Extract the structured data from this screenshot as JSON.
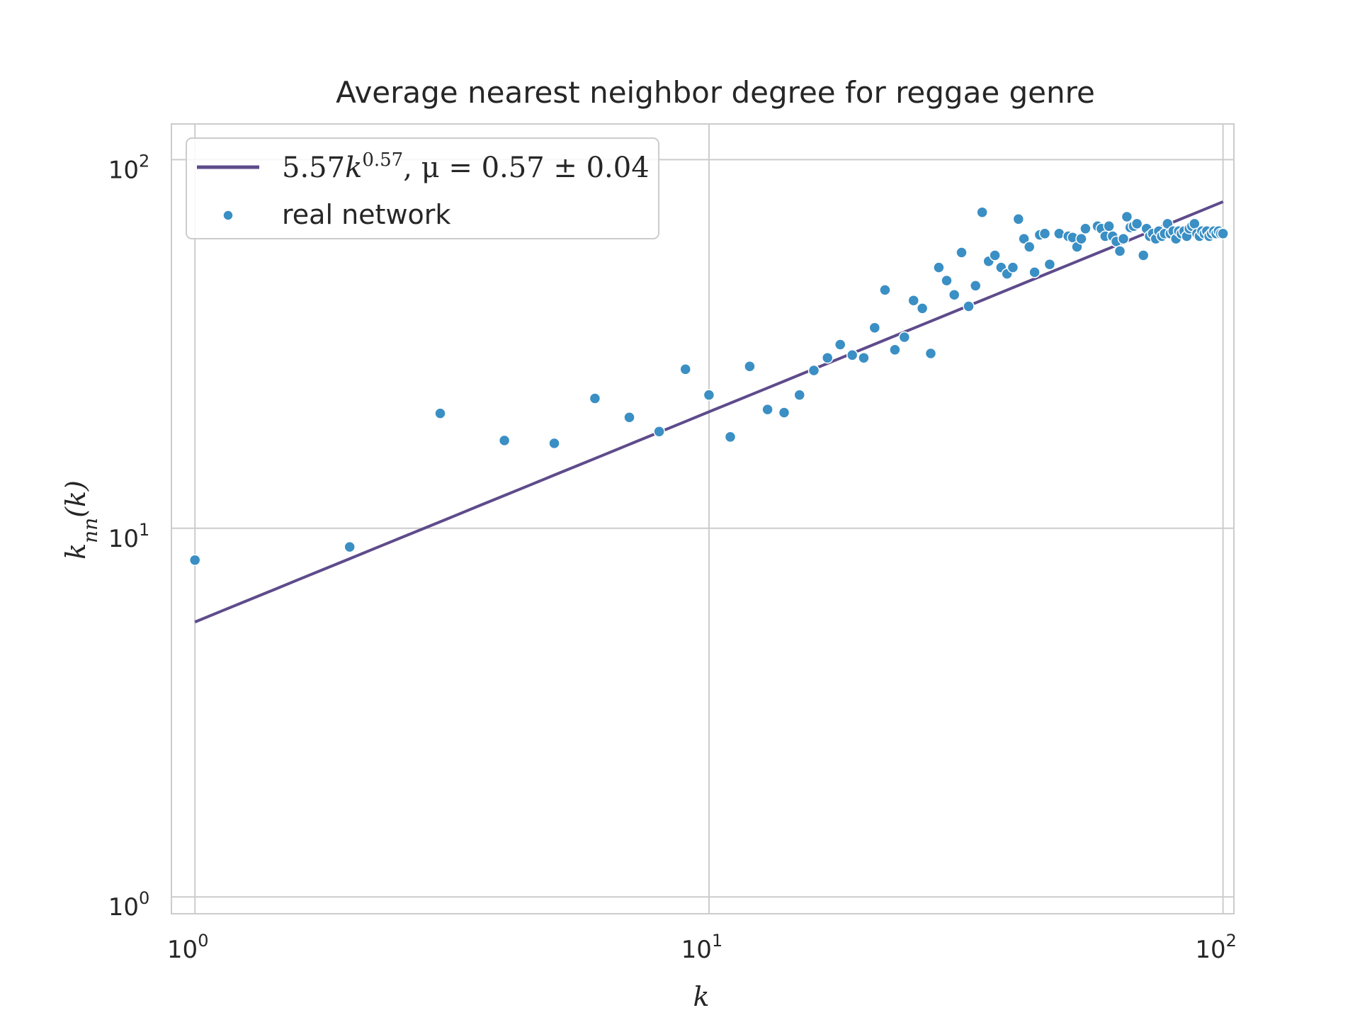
{
  "chart_data": {
    "type": "scatter",
    "title": "Average nearest neighbor degree for reggae genre",
    "xlabel": "k",
    "ylabel": "k_nn(k)",
    "xscale": "log",
    "yscale": "log",
    "xlim": [
      0.9,
      105
    ],
    "ylim": [
      0.9,
      125
    ],
    "xticks": [
      1,
      10,
      100
    ],
    "yticks": [
      1,
      10,
      100
    ],
    "xtick_labels": [
      "10^0",
      "10^1",
      "10^2"
    ],
    "ytick_labels": [
      "10^0",
      "10^1",
      "10^2"
    ],
    "grid": true,
    "legend_position": "upper-left",
    "colors": {
      "fit_line": "#5e4b8b",
      "scatter": "#3a8fc4",
      "grid": "#cccccc",
      "axes_edge": "#cccccc"
    },
    "series": [
      {
        "name": "5.57k^0.57, μ = 0.57 ± 0.04",
        "kind": "line",
        "function": "power",
        "coefficient": 5.57,
        "exponent": 0.57,
        "x": [
          1,
          100
        ]
      },
      {
        "name": "real network",
        "kind": "scatter",
        "x": [
          1,
          2,
          3,
          4,
          5,
          6,
          7,
          8,
          9,
          10,
          11,
          12,
          13,
          14,
          15,
          16,
          17,
          18,
          19,
          20,
          21,
          22,
          23,
          24,
          25,
          26,
          27,
          28,
          29,
          30,
          31,
          32,
          33,
          34,
          35,
          36,
          37,
          38,
          39,
          40,
          41,
          42,
          43,
          44,
          45,
          46,
          48,
          50,
          51,
          52,
          53,
          54,
          57,
          58,
          59,
          60,
          61,
          62,
          63,
          64,
          65,
          66,
          67,
          68,
          70,
          71,
          72,
          73,
          74,
          75,
          76,
          77,
          78,
          79,
          80,
          81,
          82,
          83,
          84,
          85,
          86,
          87,
          88,
          89,
          90,
          91,
          92,
          93,
          94,
          95,
          96,
          97,
          98,
          99,
          100
        ],
        "y": [
          8.2,
          8.9,
          20.5,
          17.3,
          17.0,
          22.5,
          20.0,
          18.3,
          27.0,
          23.0,
          17.7,
          27.5,
          21.0,
          20.6,
          23.0,
          26.8,
          29.0,
          31.5,
          29.5,
          29.0,
          35.0,
          44.3,
          30.5,
          33.0,
          41.5,
          39.5,
          29.8,
          51.0,
          47.0,
          43.0,
          56.0,
          40.0,
          45.5,
          72.0,
          53.0,
          55.0,
          51.0,
          49.0,
          51.0,
          69.0,
          61.0,
          58.0,
          49.5,
          62.5,
          63.0,
          52.0,
          63.0,
          62.0,
          61.5,
          58.0,
          61.0,
          65.0,
          66.0,
          65.0,
          62.0,
          66.0,
          62.0,
          60.0,
          56.5,
          61.0,
          70.0,
          65.5,
          66.0,
          67.0,
          55.0,
          65.0,
          62.0,
          63.0,
          61.0,
          64.0,
          62.0,
          63.0,
          67.0,
          63.0,
          64.0,
          61.0,
          64.0,
          63.0,
          64.0,
          62.0,
          65.0,
          66.0,
          67.0,
          63.0,
          62.0,
          64.0,
          63.0,
          64.0,
          62.0,
          63.0,
          64.0,
          63.0,
          64.0,
          63.0,
          63.0
        ]
      }
    ],
    "legend": {
      "fit_coef": "5.57",
      "fit_var": "k",
      "fit_exp": "0.57",
      "fit_rest": ", μ = 0.57 ± 0.04",
      "scatter_label": "real network"
    }
  }
}
